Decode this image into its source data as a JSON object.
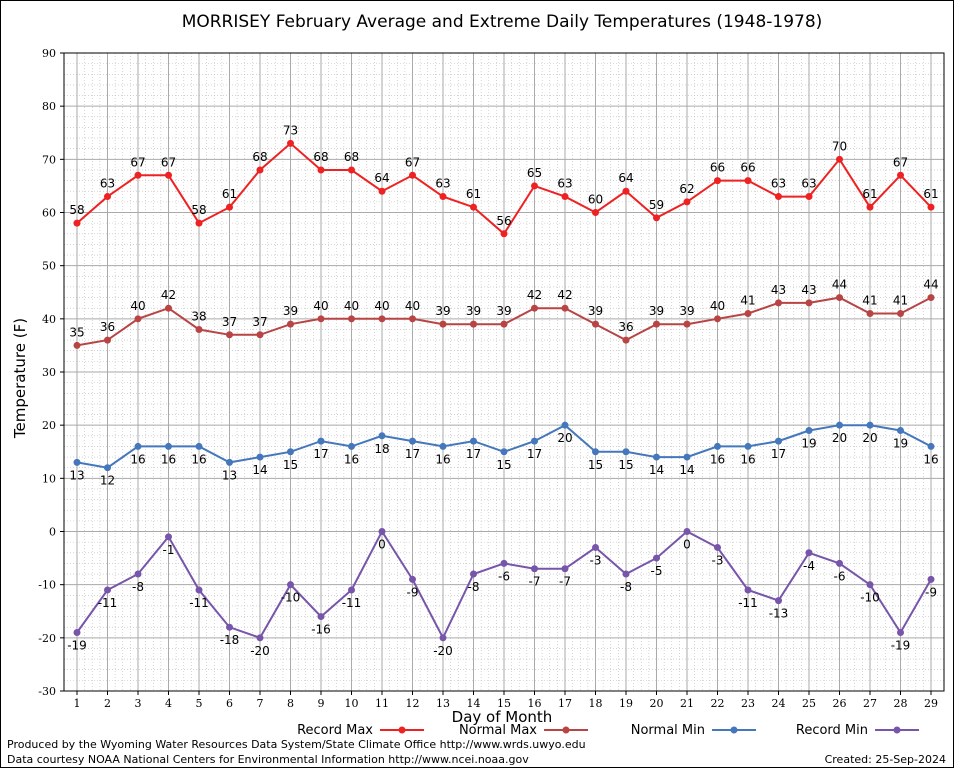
{
  "chart_data": {
    "type": "line",
    "title": "MORRISEY February Average and Extreme Daily Temperatures (1948-1978)",
    "xlabel": "Day of Month",
    "ylabel": "Temperature (F)",
    "x": [
      1,
      2,
      3,
      4,
      5,
      6,
      7,
      8,
      9,
      10,
      11,
      12,
      13,
      14,
      15,
      16,
      17,
      18,
      19,
      20,
      21,
      22,
      23,
      24,
      25,
      26,
      27,
      28,
      29
    ],
    "ylim": [
      -30,
      90
    ],
    "yticks": [
      -30,
      -20,
      -10,
      0,
      10,
      20,
      30,
      40,
      50,
      60,
      70,
      80,
      90
    ],
    "grid": true,
    "legend_position": "bottom",
    "series": [
      {
        "name": "Record Max",
        "color": "#ee2222",
        "label_pos": "above",
        "values": [
          58,
          63,
          67,
          67,
          58,
          61,
          68,
          73,
          68,
          68,
          64,
          67,
          63,
          61,
          56,
          65,
          63,
          60,
          64,
          59,
          62,
          66,
          66,
          63,
          63,
          70,
          61,
          67,
          61
        ]
      },
      {
        "name": "Normal Max",
        "color": "#b84444",
        "label_pos": "above",
        "values": [
          35,
          36,
          40,
          42,
          38,
          37,
          37,
          39,
          40,
          40,
          40,
          40,
          39,
          39,
          39,
          42,
          42,
          39,
          36,
          39,
          39,
          40,
          41,
          43,
          43,
          44,
          41,
          41,
          44
        ]
      },
      {
        "name": "Normal Min",
        "color": "#4477bb",
        "label_pos": "below",
        "values": [
          13,
          12,
          16,
          16,
          16,
          13,
          14,
          15,
          17,
          16,
          18,
          17,
          16,
          17,
          15,
          17,
          20,
          15,
          15,
          14,
          14,
          16,
          16,
          17,
          19,
          20,
          20,
          19,
          16
        ]
      },
      {
        "name": "Record Min",
        "color": "#7755aa",
        "label_pos": "below",
        "values": [
          -19,
          -11,
          -8,
          -1,
          -11,
          -18,
          -20,
          -10,
          -16,
          -11,
          0,
          -9,
          -20,
          -8,
          -6,
          -7,
          -7,
          -3,
          -8,
          -5,
          0,
          -3,
          -11,
          -13,
          -4,
          -6,
          -10,
          -19,
          -9
        ]
      }
    ]
  },
  "footer": {
    "produced_by": "Produced by the Wyoming Water Resources Data System/State Climate Office http://www.wrds.uwyo.edu",
    "data_courtesy": "Data courtesy NOAA National Centers for Environmental Information http://www.ncei.noaa.gov",
    "created": "Created:  25-Sep-2024"
  }
}
